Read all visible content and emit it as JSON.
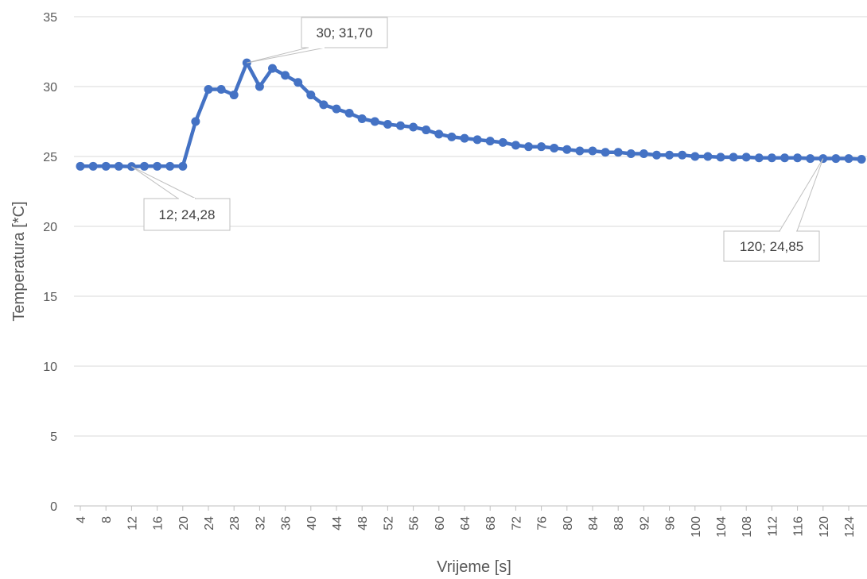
{
  "chart_data": {
    "type": "line",
    "xlabel": "Vrijeme [s]",
    "ylabel": "Temperatura [*C]",
    "ylim": [
      0,
      35
    ],
    "y_ticks": [
      0,
      5,
      10,
      15,
      20,
      25,
      30,
      35
    ],
    "x_tick_labels": [
      "4",
      "8",
      "12",
      "16",
      "20",
      "24",
      "28",
      "32",
      "36",
      "40",
      "44",
      "48",
      "52",
      "56",
      "60",
      "64",
      "68",
      "72",
      "76",
      "80",
      "84",
      "88",
      "92",
      "96",
      "100",
      "104",
      "108",
      "112",
      "116",
      "120",
      "124"
    ],
    "grid": "horizontal",
    "legend": "none",
    "series_color": "#4472C4",
    "series": [
      {
        "x": [
          4,
          6,
          8,
          10,
          12,
          14,
          16,
          18,
          20,
          22,
          24,
          26,
          28,
          30,
          32,
          34,
          36,
          38,
          40,
          42,
          44,
          46,
          48,
          50,
          52,
          54,
          56,
          58,
          60,
          62,
          64,
          66,
          68,
          70,
          72,
          74,
          76,
          78,
          80,
          82,
          84,
          86,
          88,
          90,
          92,
          94,
          96,
          98,
          100,
          102,
          104,
          106,
          108,
          110,
          112,
          114,
          116,
          118,
          120,
          122,
          124,
          126
        ],
        "values": [
          24.3,
          24.3,
          24.3,
          24.3,
          24.28,
          24.3,
          24.3,
          24.3,
          24.3,
          27.5,
          29.8,
          29.8,
          29.4,
          31.7,
          30.0,
          31.3,
          30.8,
          30.3,
          29.4,
          28.7,
          28.4,
          28.1,
          27.7,
          27.5,
          27.3,
          27.2,
          27.1,
          26.9,
          26.6,
          26.4,
          26.3,
          26.2,
          26.1,
          26.0,
          25.8,
          25.7,
          25.7,
          25.6,
          25.5,
          25.4,
          25.4,
          25.3,
          25.3,
          25.2,
          25.2,
          25.1,
          25.1,
          25.1,
          25.0,
          25.0,
          24.95,
          24.95,
          24.95,
          24.9,
          24.9,
          24.9,
          24.9,
          24.85,
          24.85,
          24.85,
          24.85,
          24.8
        ]
      }
    ],
    "annotations": [
      {
        "x": 30,
        "y": 31.7,
        "text": "30; 31,70"
      },
      {
        "x": 12,
        "y": 24.28,
        "text": "12; 24,28"
      },
      {
        "x": 120,
        "y": 24.85,
        "text": "120; 24,85"
      }
    ]
  }
}
